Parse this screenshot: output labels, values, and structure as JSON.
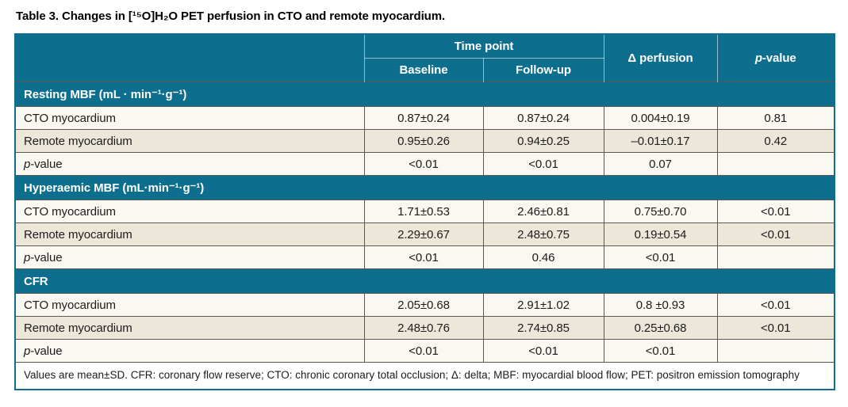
{
  "page": {
    "title": "Table 3. Changes in [¹⁵O]H₂O PET perfusion in CTO and remote myocardium."
  },
  "colors": {
    "header_teal": "#0d6f8d",
    "row_light": "#faf8f0",
    "row_beige": "#ece7d8",
    "border_dark": "#5d594f",
    "header_divider": "rgba(255,255,255,0.55)"
  },
  "table": {
    "header": {
      "time_point": "Time point",
      "baseline": "Baseline",
      "followup": "Follow-up",
      "delta_perfusion": "Δ perfusion",
      "p_italic": "p",
      "p_rest": "-value"
    },
    "sections": [
      {
        "heading": "Resting MBF (mL · min⁻¹·g⁻¹)",
        "rows": [
          {
            "label": "CTO myocardium",
            "baseline": "0.87±0.24",
            "followup": "0.87±0.24",
            "delta": "0.004±0.19",
            "p": "0.81"
          },
          {
            "label": "Remote myocardium",
            "baseline": "0.95±0.26",
            "followup": "0.94±0.25",
            "delta": "–0.01±0.17",
            "p": "0.42"
          },
          {
            "label_italic": "p",
            "label_rest": "-value",
            "baseline": "<0.01",
            "followup": "<0.01",
            "delta": "0.07",
            "p": ""
          }
        ]
      },
      {
        "heading": "Hyperaemic MBF (mL·min⁻¹·g⁻¹)",
        "rows": [
          {
            "label": "CTO myocardium",
            "baseline": "1.71±0.53",
            "followup": "2.46±0.81",
            "delta": "0.75±0.70",
            "p": "<0.01"
          },
          {
            "label": "Remote myocardium",
            "baseline": "2.29±0.67",
            "followup": "2.48±0.75",
            "delta": "0.19±0.54",
            "p": "<0.01"
          },
          {
            "label_italic": "p",
            "label_rest": "-value",
            "baseline": "<0.01",
            "followup": "0.46",
            "delta": "<0.01",
            "p": ""
          }
        ]
      },
      {
        "heading": "CFR",
        "rows": [
          {
            "label": "CTO myocardium",
            "baseline": "2.05±0.68",
            "followup": "2.91±1.02",
            "delta": "0.8 ±0.93",
            "p": "<0.01"
          },
          {
            "label": "Remote myocardium",
            "baseline": "2.48±0.76",
            "followup": "2.74±0.85",
            "delta": "0.25±0.68",
            "p": "<0.01"
          },
          {
            "label_italic": "p",
            "label_rest": "-value",
            "baseline": "<0.01",
            "followup": "<0.01",
            "delta": "<0.01",
            "p": ""
          }
        ]
      }
    ],
    "footnote": "Values are mean±SD. CFR: coronary flow reserve; CTO: chronic coronary total occlusion; Δ: delta; MBF: myocardial blood flow; PET: positron emission tomography"
  }
}
